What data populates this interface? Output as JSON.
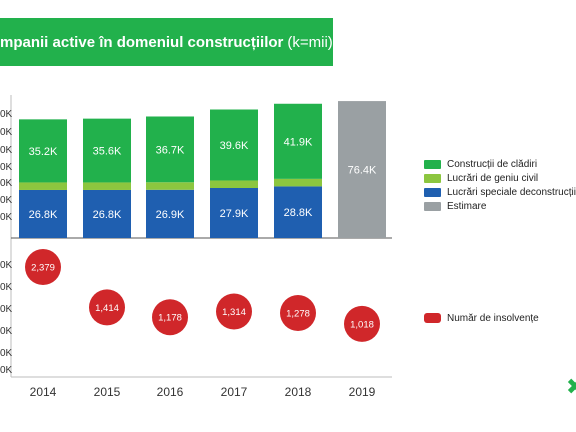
{
  "title": {
    "main": "mpanii active în domeniul construcțiilor",
    "unit": "(k=mii)"
  },
  "legend": {
    "top": [
      {
        "label": "Construcții de clădiri",
        "color": "#22b14c"
      },
      {
        "label": "Lucrări de geniu civil",
        "color": "#8cc63f"
      },
      {
        "label": "Lucrări speciale deconstrucții",
        "color": "#1f5fb0"
      },
      {
        "label": "Estimare",
        "color": "#9aa0a3"
      }
    ],
    "bottom": [
      {
        "label": "Număr de insolvențe",
        "color": "#d0272a"
      }
    ]
  },
  "y_tick_labels_top": [
    "0K",
    "0K",
    "0K",
    "0K",
    "0K",
    "0K",
    "0K"
  ],
  "y_tick_labels_bottom": [
    "0K",
    "0K",
    "0K",
    "0K",
    "0K"
  ],
  "chart_data": [
    {
      "type": "bar",
      "stacked": true,
      "categories": [
        "2014",
        "2015",
        "2016",
        "2017",
        "2018",
        "2019"
      ],
      "series": [
        {
          "name": "Lucrări speciale deconstrucții",
          "color": "#1f5fb0",
          "values": [
            26.8,
            26.8,
            26.9,
            27.9,
            28.8,
            null
          ],
          "labels": [
            "26.8K",
            "26.8K",
            "26.9K",
            "27.9K",
            "28.8K",
            ""
          ]
        },
        {
          "name": "Lucrări de geniu civil",
          "color": "#8cc63f",
          "values": [
            4.2,
            4.2,
            4.2,
            4.2,
            4.2,
            null
          ],
          "labels": [
            "",
            "",
            "",
            "",
            "",
            ""
          ]
        },
        {
          "name": "Construcții de clădiri",
          "color": "#22b14c",
          "values": [
            35.2,
            35.6,
            36.7,
            39.6,
            41.9,
            null
          ],
          "labels": [
            "35.2K",
            "35.6K",
            "36.7K",
            "39.6K",
            "41.9K",
            ""
          ]
        },
        {
          "name": "Estimare",
          "color": "#9aa0a3",
          "values": [
            null,
            null,
            null,
            null,
            null,
            76.4
          ],
          "labels": [
            "",
            "",
            "",
            "",
            "",
            "76.4K"
          ]
        }
      ],
      "ylim": [
        0,
        77
      ]
    },
    {
      "type": "scatter",
      "categories": [
        "2014",
        "2015",
        "2016",
        "2017",
        "2018",
        "2019"
      ],
      "series": [
        {
          "name": "Număr de insolvențe",
          "color": "#d0272a",
          "values": [
            2379,
            1414,
            1178,
            1314,
            1278,
            1018
          ],
          "labels": [
            "2,379",
            "1,414",
            "1,178",
            "1,314",
            "1,278",
            "1,018"
          ]
        }
      ],
      "ylim": [
        800,
        2500
      ]
    }
  ]
}
